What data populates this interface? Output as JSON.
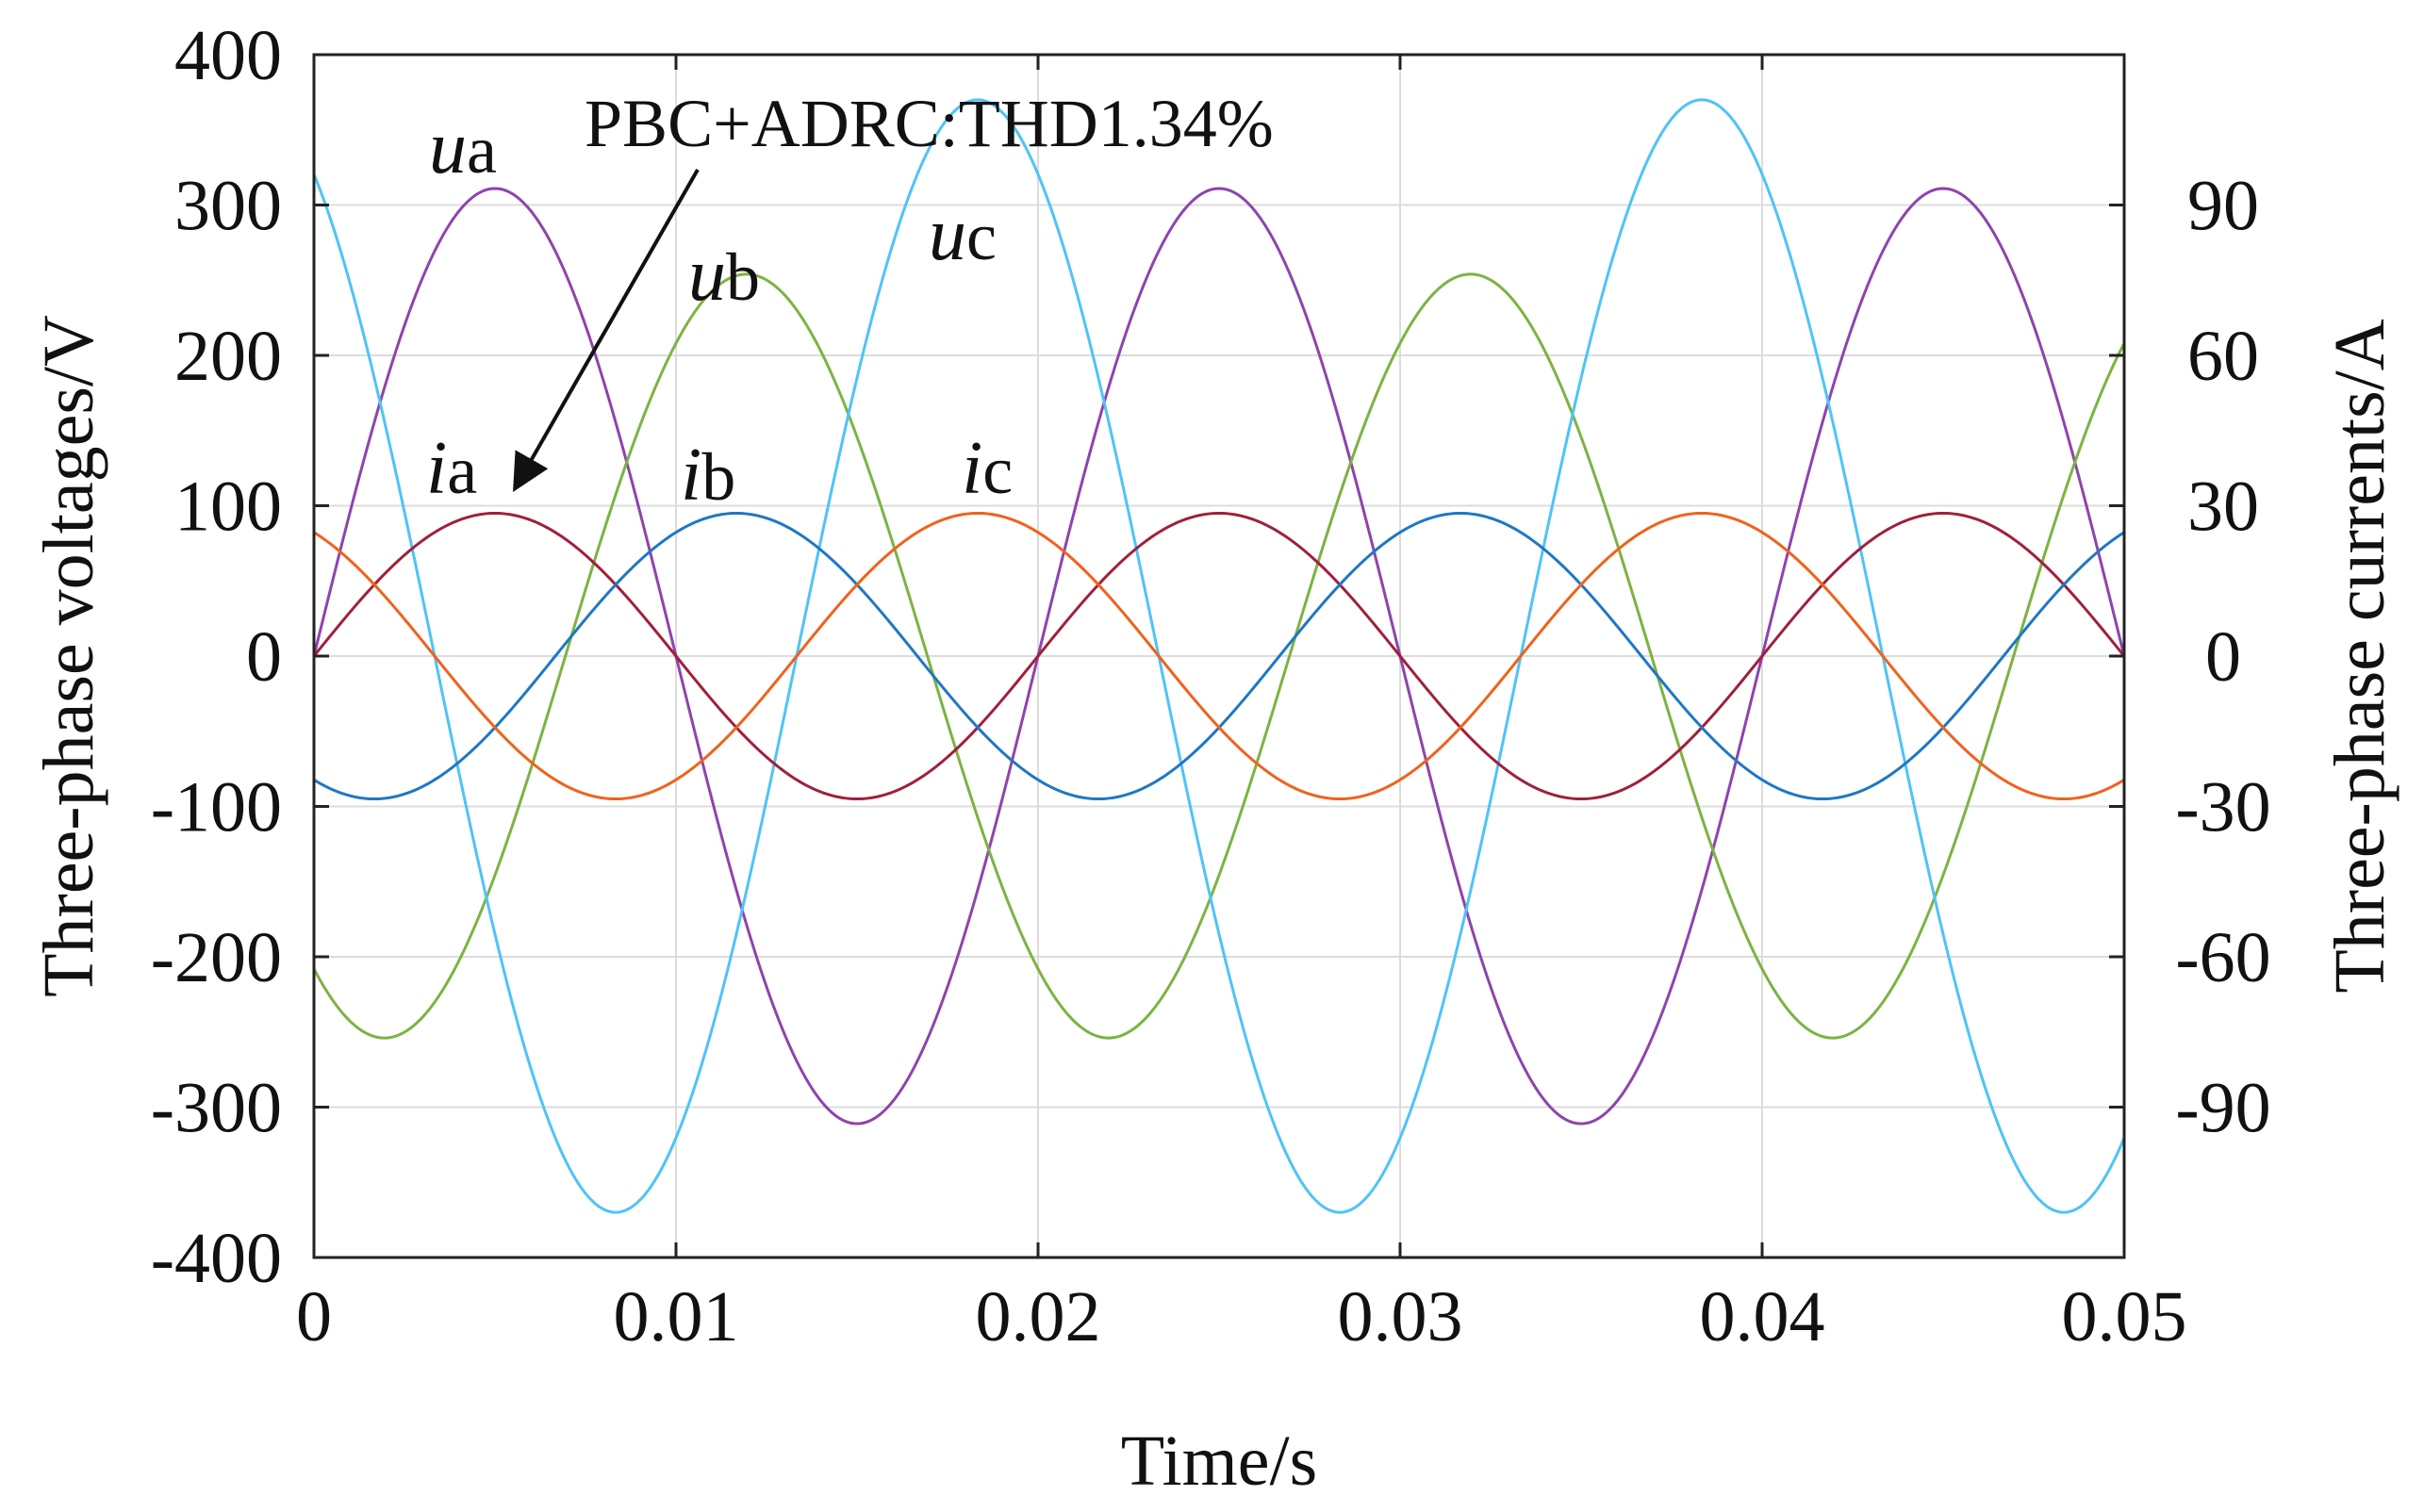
{
  "chart_data": {
    "type": "line",
    "title": "",
    "xlabel": "Time/s",
    "ylabel_left": "Three-phase voltages/V",
    "ylabel_right": "Three-phase currents/A",
    "xlim": [
      0,
      0.05
    ],
    "ylim_left": [
      -400,
      400
    ],
    "ylim_right": [
      -120,
      120
    ],
    "x_ticks": [
      "0",
      "0.01",
      "0.02",
      "0.03",
      "0.04",
      "0.05"
    ],
    "y_ticks_left": [
      "400",
      "300",
      "200",
      "100",
      "0",
      "-100",
      "-200",
      "-300",
      "-400"
    ],
    "y_ticks_right": [
      "90",
      "60",
      "30",
      "0",
      "-30",
      "-60",
      "-90"
    ],
    "grid": true,
    "annotation": "PBC+ADRC:THD1.34%",
    "frequency_hz": 50,
    "series": [
      {
        "name": "ua",
        "axis": "left",
        "amplitude": 311,
        "phase_deg": 0,
        "color": "#8e44ad",
        "label_main": "u",
        "label_sub": "a"
      },
      {
        "name": "ub",
        "axis": "left",
        "amplitude": 254,
        "phase_deg": -125,
        "color": "#7cb342",
        "label_main": "u",
        "label_sub": "b"
      },
      {
        "name": "uc",
        "axis": "left",
        "amplitude": 370,
        "phase_deg": 120,
        "color": "#4fc3f7",
        "label_main": "u",
        "label_sub": "c"
      },
      {
        "name": "ia",
        "axis": "right",
        "amplitude": 28.5,
        "phase_deg": 0,
        "color": "#a0203a",
        "label_main": "i",
        "label_sub": "a"
      },
      {
        "name": "ib",
        "axis": "right",
        "amplitude": 28.5,
        "phase_deg": -120,
        "color": "#1f77c4",
        "label_main": "i",
        "label_sub": "b"
      },
      {
        "name": "ic",
        "axis": "right",
        "amplitude": 28.5,
        "phase_deg": 120,
        "color": "#f0621c",
        "label_main": "i",
        "label_sub": "c"
      }
    ]
  }
}
